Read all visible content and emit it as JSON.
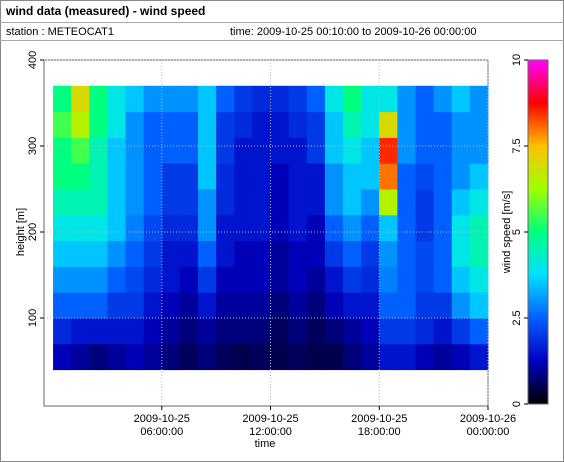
{
  "header": {
    "title": "wind data (measured) - wind speed",
    "station": "station : METEOCAT1",
    "time": "time: 2009-10-25 00:10:00 to 2009-10-26 00:00:00"
  },
  "chart_data": {
    "type": "heatmap",
    "xlabel": "time",
    "ylabel": "height [m]",
    "zlabel": "wind speed [m/s]",
    "xlim": [
      -0.5,
      24
    ],
    "xticks": [
      {
        "value": 6,
        "label": "2009-10-25 06:00:00"
      },
      {
        "value": 12,
        "label": "2009-10-25 12:00:00"
      },
      {
        "value": 18,
        "label": "2009-10-25 18:00:00"
      },
      {
        "value": 24,
        "label": "2009-10-26 00:00:00"
      }
    ],
    "ylim": [
      0,
      400
    ],
    "yticks": [
      100,
      200,
      300,
      400
    ],
    "zlim": [
      0,
      10
    ],
    "zticks": [
      0,
      2.5,
      5,
      7.5,
      10
    ],
    "colormap": [
      "#000000",
      "#0000c0",
      "#0060ff",
      "#00e0ff",
      "#00ff80",
      "#a0ff00",
      "#ffc000",
      "#ff0000",
      "#ff00ff"
    ],
    "grid": true,
    "x_bins": [
      0,
      1,
      2,
      3,
      4,
      5,
      6,
      7,
      8,
      9,
      10,
      11,
      12,
      13,
      14,
      15,
      16,
      17,
      18,
      19,
      20,
      21,
      22,
      23,
      24
    ],
    "y_bins": [
      40,
      70,
      100,
      130,
      160,
      190,
      220,
      250,
      280,
      310,
      340,
      370
    ],
    "values": [
      [
        1.2,
        1,
        0.8,
        1,
        1.2,
        1,
        0.8,
        0.6,
        0.8,
        0.6,
        0.5,
        0.6,
        0.5,
        0.6,
        0.5,
        0.5,
        0.8,
        1,
        1.5,
        1.5,
        1.2,
        1,
        1.2,
        1.5
      ],
      [
        1.8,
        1.5,
        1.5,
        1.5,
        1.5,
        1.2,
        1,
        0.8,
        1,
        0.8,
        0.8,
        0.8,
        0.6,
        0.8,
        0.6,
        0.8,
        1,
        1.2,
        2,
        2,
        1.8,
        1.5,
        2,
        2.5
      ],
      [
        2.5,
        2.5,
        2.5,
        2,
        2,
        1.5,
        1.2,
        1,
        1.5,
        1,
        1,
        1,
        0.8,
        1,
        0.8,
        1.2,
        1.5,
        1.5,
        2.5,
        2.5,
        2,
        2,
        3,
        3.5
      ],
      [
        3,
        3,
        3,
        2.5,
        2.2,
        1.8,
        1.5,
        1.2,
        2,
        1.2,
        1.2,
        1.2,
        1,
        1.2,
        1,
        1.5,
        2,
        1.8,
        2.8,
        2.5,
        2.2,
        2.5,
        3.5,
        4
      ],
      [
        3.5,
        3.5,
        3.5,
        3,
        2.5,
        2,
        1.5,
        1.5,
        2.5,
        1.5,
        1.2,
        1.2,
        1,
        1.2,
        1.2,
        2,
        2.5,
        2,
        3,
        2.5,
        2.2,
        2.5,
        4,
        4.5
      ],
      [
        4,
        4,
        4,
        3.5,
        2.8,
        2.2,
        1.8,
        1.8,
        3,
        1.5,
        1.5,
        1.5,
        1.2,
        1.5,
        1.2,
        2.5,
        3,
        2.5,
        3.5,
        2.5,
        2,
        2.5,
        4,
        4.5
      ],
      [
        4.5,
        4.5,
        4.5,
        3.5,
        3,
        2.5,
        2,
        2,
        3,
        1.8,
        1.5,
        1.5,
        1.2,
        1.5,
        1.5,
        3,
        3.5,
        3,
        6.5,
        2.5,
        2,
        2.5,
        3.5,
        4
      ],
      [
        5,
        5,
        4.5,
        3.5,
        3,
        2.5,
        2,
        2,
        3.5,
        1.8,
        1.5,
        1.5,
        1.2,
        1.5,
        1.5,
        3,
        3.5,
        3.5,
        8,
        2.5,
        2.2,
        2.5,
        3,
        3.5
      ],
      [
        5,
        5.5,
        4.5,
        3.5,
        3,
        2.5,
        2.5,
        2.5,
        3.5,
        2,
        1.5,
        1.5,
        1.5,
        1.5,
        2,
        3.5,
        4,
        3.5,
        8.5,
        3,
        2.5,
        2.5,
        3,
        3
      ],
      [
        5.5,
        6.5,
        5,
        4,
        3,
        2.5,
        2.5,
        2.5,
        3.5,
        2,
        1.8,
        1.5,
        1.5,
        1.8,
        2,
        3.5,
        4.5,
        4,
        7,
        3,
        2.5,
        2.5,
        3,
        3
      ],
      [
        5,
        7,
        5,
        4,
        3.5,
        3,
        3,
        3,
        3.5,
        2.5,
        2,
        1.8,
        1.8,
        2,
        2.5,
        4,
        5,
        4,
        4,
        3,
        2.5,
        3,
        3.5,
        3
      ]
    ]
  }
}
